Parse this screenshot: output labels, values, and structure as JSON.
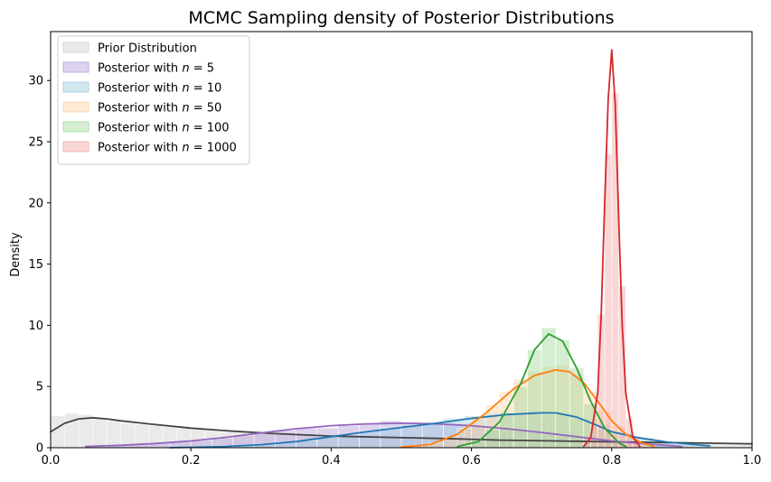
{
  "chart_data": {
    "type": "histogram+kde",
    "title": "MCMC Sampling density of Posterior Distributions",
    "xlabel": "",
    "ylabel": "Density",
    "xlim": [
      0,
      1
    ],
    "ylim": [
      0,
      34
    ],
    "x_ticks": [
      0.0,
      0.2,
      0.4,
      0.6,
      0.8,
      1.0
    ],
    "x_tick_labels": [
      "0.0",
      "0.2",
      "0.4",
      "0.6",
      "0.8",
      "1.0"
    ],
    "y_ticks": [
      0,
      5,
      10,
      15,
      20,
      25,
      30
    ],
    "y_tick_labels": [
      "0",
      "5",
      "10",
      "15",
      "20",
      "25",
      "30"
    ],
    "grid": false,
    "legend_position": "top-left",
    "series": [
      {
        "name": "Prior Distribution",
        "label_prefix": "Prior Distribution",
        "label_n": "",
        "fill_color": "#d0d0d0",
        "line_color": "#444444",
        "bins": [
          [
            0.0,
            0.02,
            2.6
          ],
          [
            0.02,
            0.04,
            2.8
          ],
          [
            0.04,
            0.06,
            2.7
          ],
          [
            0.06,
            0.08,
            2.4
          ],
          [
            0.08,
            0.1,
            2.2
          ],
          [
            0.1,
            0.12,
            2.0
          ],
          [
            0.12,
            0.14,
            1.9
          ],
          [
            0.14,
            0.16,
            1.8
          ],
          [
            0.16,
            0.18,
            1.7
          ],
          [
            0.18,
            0.2,
            1.6
          ],
          [
            0.2,
            0.22,
            1.5
          ],
          [
            0.22,
            0.24,
            1.4
          ],
          [
            0.24,
            0.26,
            1.3
          ],
          [
            0.26,
            0.28,
            1.3
          ],
          [
            0.28,
            0.3,
            1.2
          ],
          [
            0.3,
            0.32,
            1.2
          ],
          [
            0.32,
            0.34,
            1.1
          ],
          [
            0.34,
            0.36,
            1.1
          ],
          [
            0.36,
            0.38,
            1.0
          ],
          [
            0.38,
            0.4,
            1.0
          ],
          [
            0.4,
            0.42,
            0.9
          ],
          [
            0.42,
            0.44,
            0.9
          ],
          [
            0.44,
            0.46,
            0.9
          ],
          [
            0.46,
            0.48,
            0.8
          ],
          [
            0.48,
            0.5,
            0.8
          ],
          [
            0.5,
            0.52,
            0.8
          ],
          [
            0.52,
            0.54,
            0.8
          ],
          [
            0.54,
            0.56,
            0.7
          ],
          [
            0.56,
            0.58,
            0.7
          ],
          [
            0.58,
            0.6,
            0.7
          ],
          [
            0.6,
            0.62,
            0.7
          ],
          [
            0.62,
            0.64,
            0.6
          ],
          [
            0.64,
            0.66,
            0.6
          ],
          [
            0.66,
            0.68,
            0.6
          ],
          [
            0.68,
            0.7,
            0.6
          ],
          [
            0.7,
            0.72,
            0.6
          ],
          [
            0.72,
            0.74,
            0.5
          ],
          [
            0.74,
            0.76,
            0.5
          ],
          [
            0.76,
            0.78,
            0.5
          ],
          [
            0.78,
            0.8,
            0.5
          ],
          [
            0.8,
            0.82,
            0.5
          ],
          [
            0.82,
            0.84,
            0.5
          ],
          [
            0.84,
            0.86,
            0.4
          ],
          [
            0.86,
            0.88,
            0.4
          ],
          [
            0.88,
            0.9,
            0.4
          ],
          [
            0.9,
            0.92,
            0.4
          ],
          [
            0.92,
            0.94,
            0.4
          ],
          [
            0.94,
            0.96,
            0.4
          ],
          [
            0.96,
            0.98,
            0.3
          ],
          [
            0.98,
            1.0,
            0.3
          ]
        ],
        "kde": [
          [
            0.0,
            1.3
          ],
          [
            0.02,
            2.0
          ],
          [
            0.04,
            2.35
          ],
          [
            0.06,
            2.45
          ],
          [
            0.08,
            2.35
          ],
          [
            0.1,
            2.2
          ],
          [
            0.14,
            1.95
          ],
          [
            0.2,
            1.6
          ],
          [
            0.26,
            1.35
          ],
          [
            0.32,
            1.15
          ],
          [
            0.4,
            0.95
          ],
          [
            0.48,
            0.85
          ],
          [
            0.56,
            0.75
          ],
          [
            0.64,
            0.62
          ],
          [
            0.72,
            0.55
          ],
          [
            0.8,
            0.48
          ],
          [
            0.88,
            0.42
          ],
          [
            0.95,
            0.36
          ],
          [
            1.0,
            0.32
          ]
        ]
      },
      {
        "name": "Posterior with n = 5",
        "label_prefix": "Posterior with ",
        "label_n": "5",
        "fill_color": "#b39ddb",
        "line_color": "#9467bd",
        "bins": [
          [
            0.05,
            0.08,
            0.1
          ],
          [
            0.08,
            0.11,
            0.2
          ],
          [
            0.11,
            0.14,
            0.3
          ],
          [
            0.14,
            0.17,
            0.4
          ],
          [
            0.17,
            0.2,
            0.5
          ],
          [
            0.2,
            0.23,
            0.6
          ],
          [
            0.23,
            0.26,
            0.8
          ],
          [
            0.26,
            0.29,
            1.0
          ],
          [
            0.29,
            0.32,
            1.2
          ],
          [
            0.32,
            0.35,
            1.4
          ],
          [
            0.35,
            0.38,
            1.6
          ],
          [
            0.38,
            0.41,
            1.6
          ],
          [
            0.41,
            0.44,
            1.8
          ],
          [
            0.44,
            0.47,
            2.0
          ],
          [
            0.47,
            0.5,
            2.2
          ],
          [
            0.5,
            0.53,
            2.1
          ],
          [
            0.53,
            0.56,
            2.0
          ],
          [
            0.56,
            0.59,
            1.9
          ],
          [
            0.59,
            0.62,
            1.8
          ],
          [
            0.62,
            0.65,
            1.7
          ],
          [
            0.65,
            0.68,
            1.5
          ],
          [
            0.68,
            0.71,
            1.3
          ],
          [
            0.71,
            0.74,
            1.1
          ],
          [
            0.74,
            0.77,
            0.9
          ],
          [
            0.77,
            0.8,
            0.7
          ],
          [
            0.8,
            0.83,
            0.5
          ],
          [
            0.83,
            0.86,
            0.3
          ],
          [
            0.86,
            0.89,
            0.2
          ]
        ],
        "kde": [
          [
            0.05,
            0.1
          ],
          [
            0.1,
            0.2
          ],
          [
            0.15,
            0.35
          ],
          [
            0.2,
            0.55
          ],
          [
            0.25,
            0.85
          ],
          [
            0.3,
            1.2
          ],
          [
            0.35,
            1.55
          ],
          [
            0.4,
            1.8
          ],
          [
            0.45,
            1.95
          ],
          [
            0.5,
            2.0
          ],
          [
            0.55,
            1.95
          ],
          [
            0.6,
            1.8
          ],
          [
            0.65,
            1.55
          ],
          [
            0.7,
            1.25
          ],
          [
            0.75,
            0.9
          ],
          [
            0.8,
            0.55
          ],
          [
            0.85,
            0.3
          ],
          [
            0.9,
            0.1
          ]
        ]
      },
      {
        "name": "Posterior with n = 10",
        "label_prefix": "Posterior with ",
        "label_n": "10",
        "fill_color": "#9ecae1",
        "line_color": "#1f77b4",
        "bins": [
          [
            0.17,
            0.2,
            0.05
          ],
          [
            0.2,
            0.23,
            0.1
          ],
          [
            0.23,
            0.26,
            0.15
          ],
          [
            0.26,
            0.29,
            0.2
          ],
          [
            0.29,
            0.32,
            0.3
          ],
          [
            0.32,
            0.35,
            0.45
          ],
          [
            0.35,
            0.38,
            0.6
          ],
          [
            0.38,
            0.41,
            0.9
          ],
          [
            0.41,
            0.44,
            1.1
          ],
          [
            0.44,
            0.47,
            1.4
          ],
          [
            0.47,
            0.5,
            1.6
          ],
          [
            0.5,
            0.53,
            1.9
          ],
          [
            0.53,
            0.56,
            2.1
          ],
          [
            0.56,
            0.59,
            2.4
          ],
          [
            0.59,
            0.62,
            2.6
          ],
          [
            0.62,
            0.65,
            2.8
          ],
          [
            0.65,
            0.68,
            2.9
          ],
          [
            0.68,
            0.71,
            3.0
          ],
          [
            0.71,
            0.74,
            2.9
          ],
          [
            0.74,
            0.77,
            2.4
          ],
          [
            0.77,
            0.8,
            1.9
          ],
          [
            0.8,
            0.83,
            1.2
          ],
          [
            0.83,
            0.86,
            0.8
          ],
          [
            0.86,
            0.89,
            0.5
          ],
          [
            0.89,
            0.92,
            0.3
          ],
          [
            0.92,
            0.94,
            0.2
          ]
        ],
        "kde": [
          [
            0.17,
            0.0
          ],
          [
            0.25,
            0.1
          ],
          [
            0.3,
            0.25
          ],
          [
            0.35,
            0.5
          ],
          [
            0.4,
            0.9
          ],
          [
            0.45,
            1.3
          ],
          [
            0.5,
            1.65
          ],
          [
            0.55,
            2.0
          ],
          [
            0.6,
            2.4
          ],
          [
            0.65,
            2.7
          ],
          [
            0.7,
            2.85
          ],
          [
            0.72,
            2.85
          ],
          [
            0.75,
            2.5
          ],
          [
            0.78,
            1.8
          ],
          [
            0.8,
            1.3
          ],
          [
            0.84,
            0.8
          ],
          [
            0.88,
            0.45
          ],
          [
            0.92,
            0.25
          ],
          [
            0.94,
            0.15
          ]
        ]
      },
      {
        "name": "Posterior with n = 50",
        "label_prefix": "Posterior with ",
        "label_n": "50",
        "fill_color": "#fdd0a2",
        "line_color": "#ff7f0e",
        "bins": [
          [
            0.5,
            0.52,
            0.1
          ],
          [
            0.52,
            0.54,
            0.2
          ],
          [
            0.54,
            0.56,
            0.4
          ],
          [
            0.56,
            0.58,
            0.9
          ],
          [
            0.58,
            0.6,
            1.6
          ],
          [
            0.6,
            0.62,
            2.6
          ],
          [
            0.62,
            0.64,
            3.5
          ],
          [
            0.64,
            0.66,
            4.6
          ],
          [
            0.66,
            0.68,
            5.6
          ],
          [
            0.68,
            0.7,
            6.2
          ],
          [
            0.7,
            0.72,
            6.6
          ],
          [
            0.72,
            0.74,
            6.8
          ],
          [
            0.74,
            0.76,
            6.0
          ],
          [
            0.76,
            0.78,
            4.6
          ],
          [
            0.78,
            0.8,
            3.0
          ],
          [
            0.8,
            0.82,
            1.8
          ],
          [
            0.82,
            0.84,
            0.8
          ],
          [
            0.84,
            0.86,
            0.3
          ]
        ],
        "kde": [
          [
            0.5,
            0.05
          ],
          [
            0.54,
            0.25
          ],
          [
            0.58,
            1.1
          ],
          [
            0.62,
            2.8
          ],
          [
            0.66,
            4.8
          ],
          [
            0.69,
            5.9
          ],
          [
            0.72,
            6.35
          ],
          [
            0.74,
            6.2
          ],
          [
            0.76,
            5.3
          ],
          [
            0.78,
            3.8
          ],
          [
            0.8,
            2.2
          ],
          [
            0.82,
            1.1
          ],
          [
            0.84,
            0.45
          ],
          [
            0.86,
            0.1
          ]
        ]
      },
      {
        "name": "Posterior with n = 100",
        "label_prefix": "Posterior with ",
        "label_n": "100",
        "fill_color": "#a1d99b",
        "line_color": "#2ca02c",
        "bins": [
          [
            0.58,
            0.6,
            0.2
          ],
          [
            0.6,
            0.62,
            0.6
          ],
          [
            0.62,
            0.64,
            1.5
          ],
          [
            0.64,
            0.66,
            2.9
          ],
          [
            0.66,
            0.68,
            5.0
          ],
          [
            0.68,
            0.7,
            8.0
          ],
          [
            0.7,
            0.72,
            9.8
          ],
          [
            0.72,
            0.74,
            8.8
          ],
          [
            0.74,
            0.76,
            6.5
          ],
          [
            0.76,
            0.78,
            3.6
          ],
          [
            0.78,
            0.8,
            1.5
          ],
          [
            0.8,
            0.82,
            0.5
          ]
        ],
        "kde": [
          [
            0.58,
            0.1
          ],
          [
            0.61,
            0.5
          ],
          [
            0.64,
            2.1
          ],
          [
            0.67,
            5.2
          ],
          [
            0.69,
            8.0
          ],
          [
            0.71,
            9.3
          ],
          [
            0.73,
            8.7
          ],
          [
            0.75,
            6.5
          ],
          [
            0.77,
            3.8
          ],
          [
            0.79,
            1.6
          ],
          [
            0.81,
            0.4
          ],
          [
            0.82,
            0.1
          ]
        ]
      },
      {
        "name": "Posterior with n = 1000",
        "label_prefix": "Posterior with ",
        "label_n": "1000",
        "fill_color": "#f4a6a6",
        "line_color": "#d62728",
        "bins": [
          [
            0.76,
            0.77,
            0.8
          ],
          [
            0.77,
            0.78,
            2.4
          ],
          [
            0.78,
            0.79,
            10.9
          ],
          [
            0.79,
            0.8,
            24.0
          ],
          [
            0.8,
            0.81,
            29.0
          ],
          [
            0.81,
            0.82,
            13.2
          ],
          [
            0.82,
            0.83,
            2.4
          ],
          [
            0.83,
            0.84,
            0.9
          ]
        ],
        "kde": [
          [
            0.76,
            0.1
          ],
          [
            0.77,
            0.8
          ],
          [
            0.78,
            4.5
          ],
          [
            0.785,
            11.0
          ],
          [
            0.79,
            20.0
          ],
          [
            0.795,
            28.5
          ],
          [
            0.8,
            32.5
          ],
          [
            0.805,
            28.0
          ],
          [
            0.81,
            18.5
          ],
          [
            0.815,
            10.0
          ],
          [
            0.82,
            4.5
          ],
          [
            0.83,
            0.9
          ],
          [
            0.84,
            0.1
          ]
        ]
      }
    ]
  }
}
